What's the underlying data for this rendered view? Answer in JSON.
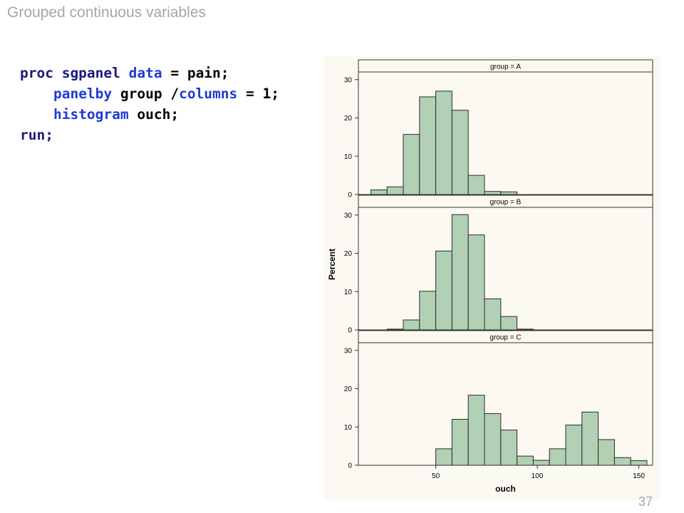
{
  "slide": {
    "title": "Grouped continuous variables",
    "page_number": "37"
  },
  "code": {
    "line1": {
      "kw": "proc sgpanel",
      "opt": "data",
      "rest": " = pain;"
    },
    "line2": {
      "opt": "panelby",
      "rest": " group /",
      "opt2": "columns",
      "rest2": " = 1;"
    },
    "line3": {
      "opt": "histogram",
      "rest": " ouch;"
    },
    "line4": {
      "kw": "run;"
    }
  },
  "colors": {
    "bar_fill": "#b2d0b3",
    "bar_stroke": "#2b2b2b",
    "chart_bg": "#fcf9f3",
    "header_bg": "#fdf8ee",
    "keyword_dark": "#1a1a7a",
    "keyword_blue": "#1c3cd6"
  },
  "chart_data": {
    "type": "histogram",
    "xlabel": "ouch",
    "ylabel": "Percent",
    "xlim": [
      14,
      154
    ],
    "ylim": [
      0,
      32
    ],
    "x_ticks": [
      50,
      100,
      150
    ],
    "y_ticks": [
      0,
      10,
      20,
      30
    ],
    "bin_width": 8,
    "panels": [
      {
        "label": "group = A",
        "bins": [
          {
            "x0": 18,
            "x1": 26,
            "value": 1.2
          },
          {
            "x0": 26,
            "x1": 34,
            "value": 2.0
          },
          {
            "x0": 34,
            "x1": 42,
            "value": 15.7
          },
          {
            "x0": 42,
            "x1": 50,
            "value": 25.5
          },
          {
            "x0": 50,
            "x1": 58,
            "value": 27.0
          },
          {
            "x0": 58,
            "x1": 66,
            "value": 22.0
          },
          {
            "x0": 66,
            "x1": 74,
            "value": 5.0
          },
          {
            "x0": 74,
            "x1": 82,
            "value": 0.8
          },
          {
            "x0": 82,
            "x1": 90,
            "value": 0.7
          }
        ]
      },
      {
        "label": "group = B",
        "bins": [
          {
            "x0": 26,
            "x1": 34,
            "value": 0.2
          },
          {
            "x0": 34,
            "x1": 42,
            "value": 2.6
          },
          {
            "x0": 42,
            "x1": 50,
            "value": 10.1
          },
          {
            "x0": 50,
            "x1": 58,
            "value": 20.6
          },
          {
            "x0": 58,
            "x1": 66,
            "value": 30.1
          },
          {
            "x0": 66,
            "x1": 74,
            "value": 24.8
          },
          {
            "x0": 74,
            "x1": 82,
            "value": 8.1
          },
          {
            "x0": 82,
            "x1": 90,
            "value": 3.5
          },
          {
            "x0": 90,
            "x1": 98,
            "value": 0.2
          }
        ]
      },
      {
        "label": "group = C",
        "bins": [
          {
            "x0": 50,
            "x1": 58,
            "value": 4.3
          },
          {
            "x0": 58,
            "x1": 66,
            "value": 12.0
          },
          {
            "x0": 66,
            "x1": 74,
            "value": 18.3
          },
          {
            "x0": 74,
            "x1": 82,
            "value": 13.5
          },
          {
            "x0": 82,
            "x1": 90,
            "value": 9.2
          },
          {
            "x0": 90,
            "x1": 98,
            "value": 2.4
          },
          {
            "x0": 98,
            "x1": 106,
            "value": 1.3
          },
          {
            "x0": 106,
            "x1": 114,
            "value": 4.3
          },
          {
            "x0": 114,
            "x1": 122,
            "value": 10.5
          },
          {
            "x0": 122,
            "x1": 130,
            "value": 13.9
          },
          {
            "x0": 130,
            "x1": 138,
            "value": 6.7
          },
          {
            "x0": 138,
            "x1": 146,
            "value": 2.0
          },
          {
            "x0": 146,
            "x1": 154,
            "value": 1.2
          }
        ]
      }
    ]
  }
}
